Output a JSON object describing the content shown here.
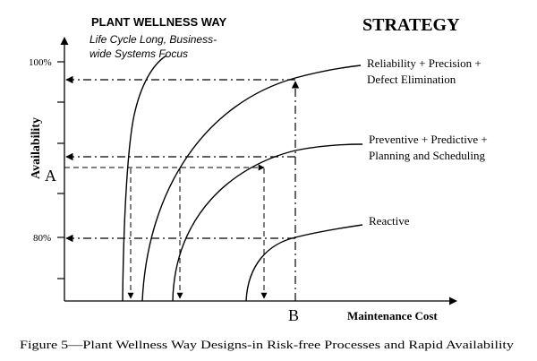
{
  "header": {
    "title": "PLANT WELLNESS WAY",
    "subtitle_line1": "Life Cycle Long, Business-",
    "subtitle_line2": "wide Systems Focus",
    "strategy": "STRATEGY"
  },
  "axes": {
    "y_label": "Availability",
    "x_label": "Maintenance Cost",
    "tick_100": "100%",
    "tick_80": "80%",
    "point_a": "A",
    "point_b": "B"
  },
  "strategies": {
    "s1_line1": "Reliability + Precision +",
    "s1_line2": "Defect Elimination",
    "s2_line1": "Preventive + Predictive +",
    "s2_line2": "Planning and Scheduling",
    "s3_line1": "Reactive"
  },
  "caption": "Figure 5—Plant Wellness Way Designs-in Risk-free Processes and Rapid Availability",
  "colors": {
    "ink": "#000000",
    "background": "#ffffff"
  }
}
